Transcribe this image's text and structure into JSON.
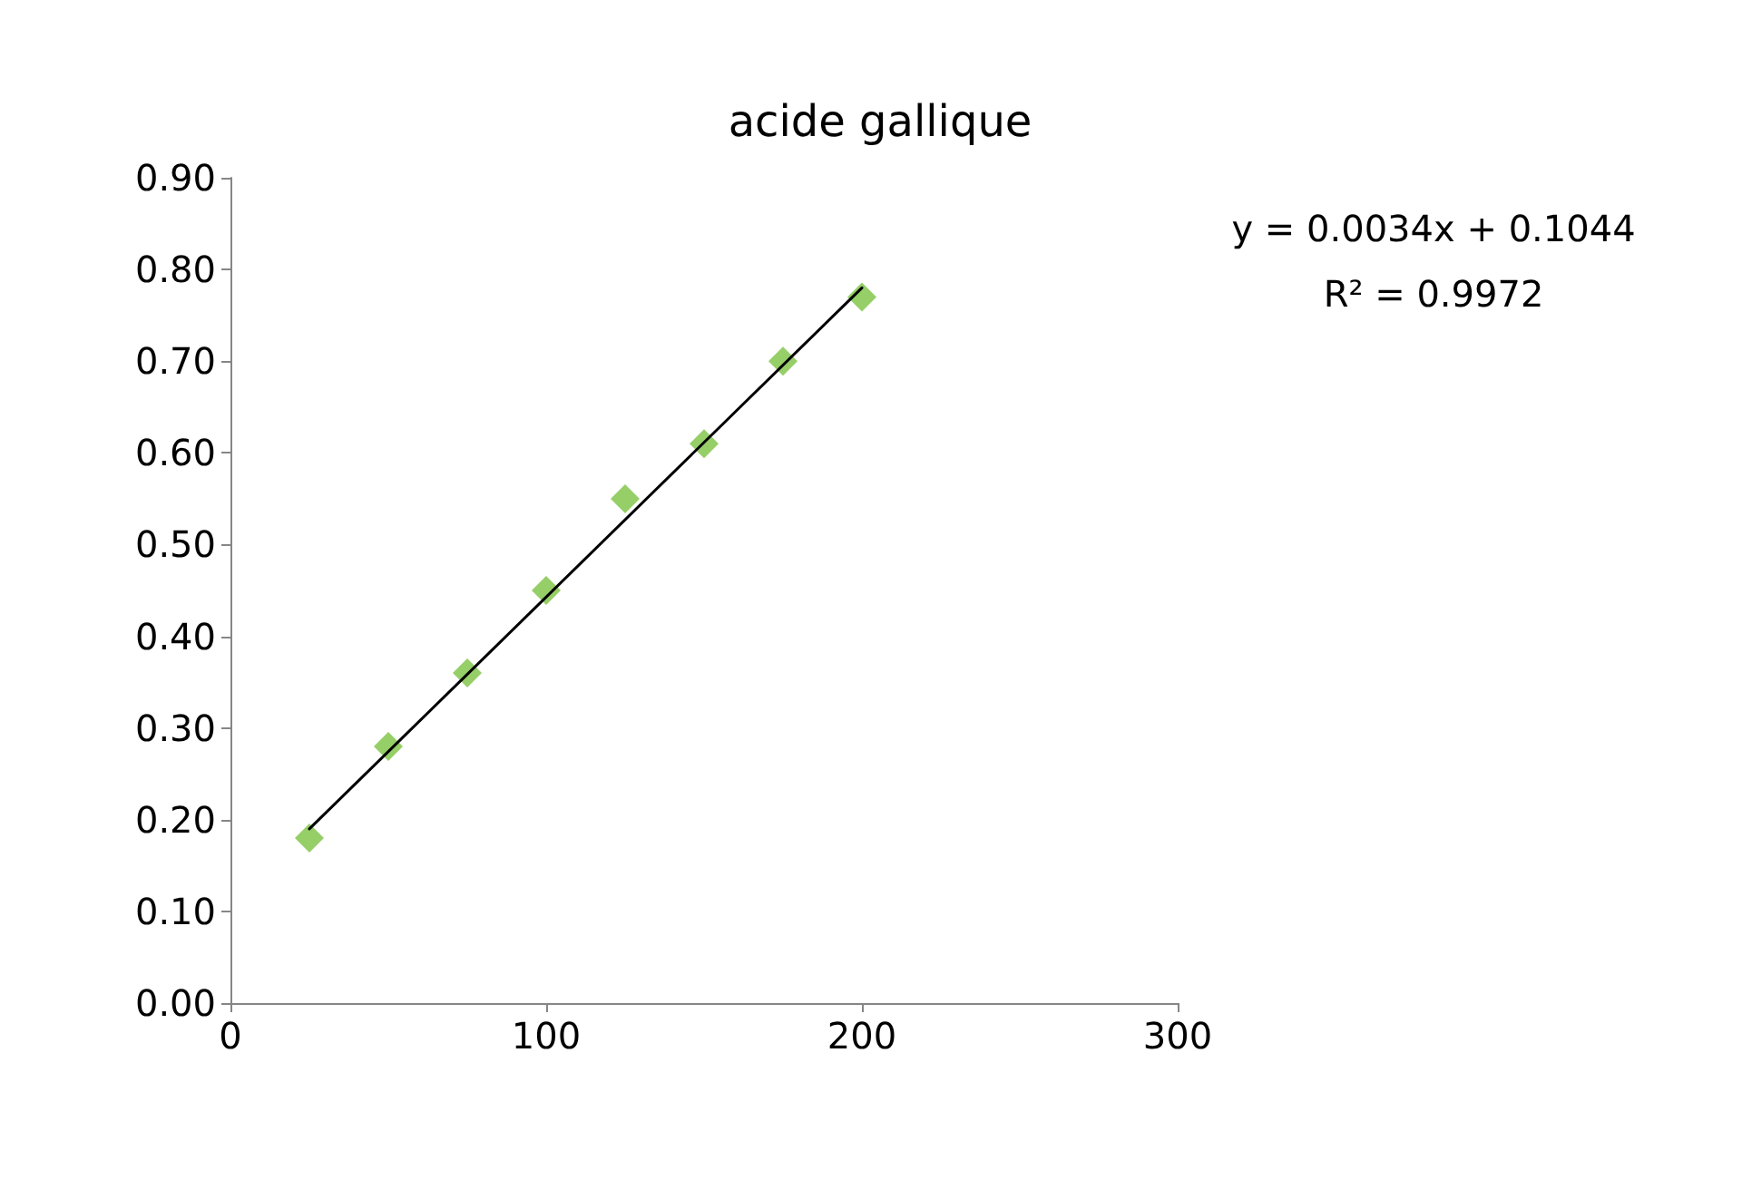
{
  "chart_data": {
    "type": "scatter",
    "title": "acide gallique",
    "xlim": [
      0,
      300
    ],
    "xticks": [
      0,
      100,
      200,
      300
    ],
    "ylim": [
      0,
      0.9
    ],
    "yticks": [
      {
        "value": 0,
        "label": "0.00"
      },
      {
        "value": 0.1,
        "label": "0.10"
      },
      {
        "value": 0.2,
        "label": "0.20"
      },
      {
        "value": 0.3,
        "label": "0.30"
      },
      {
        "value": 0.4,
        "label": "0.40"
      },
      {
        "value": 0.5,
        "label": "0.50"
      },
      {
        "value": 0.6,
        "label": "0.60"
      },
      {
        "value": 0.7,
        "label": "0.70"
      },
      {
        "value": 0.8,
        "label": "0.80"
      },
      {
        "value": 0.9,
        "label": "0.90"
      }
    ],
    "grid": false,
    "marker": "diamond",
    "series": [
      {
        "color": "#7cc242",
        "x": [
          25,
          50,
          75,
          100,
          125,
          150,
          175,
          200
        ],
        "values": [
          0.18,
          0.28,
          0.36,
          0.45,
          0.55,
          0.61,
          0.7,
          0.77
        ]
      },
      {
        "type": "line",
        "color": "#000000",
        "marker": "none",
        "line_style": "solid",
        "x": [
          25,
          200
        ],
        "values": [
          0.19,
          0.78
        ]
      }
    ],
    "annotations": [
      "y = 0.0034x + 0.1044",
      "R² = 0.9972"
    ]
  }
}
